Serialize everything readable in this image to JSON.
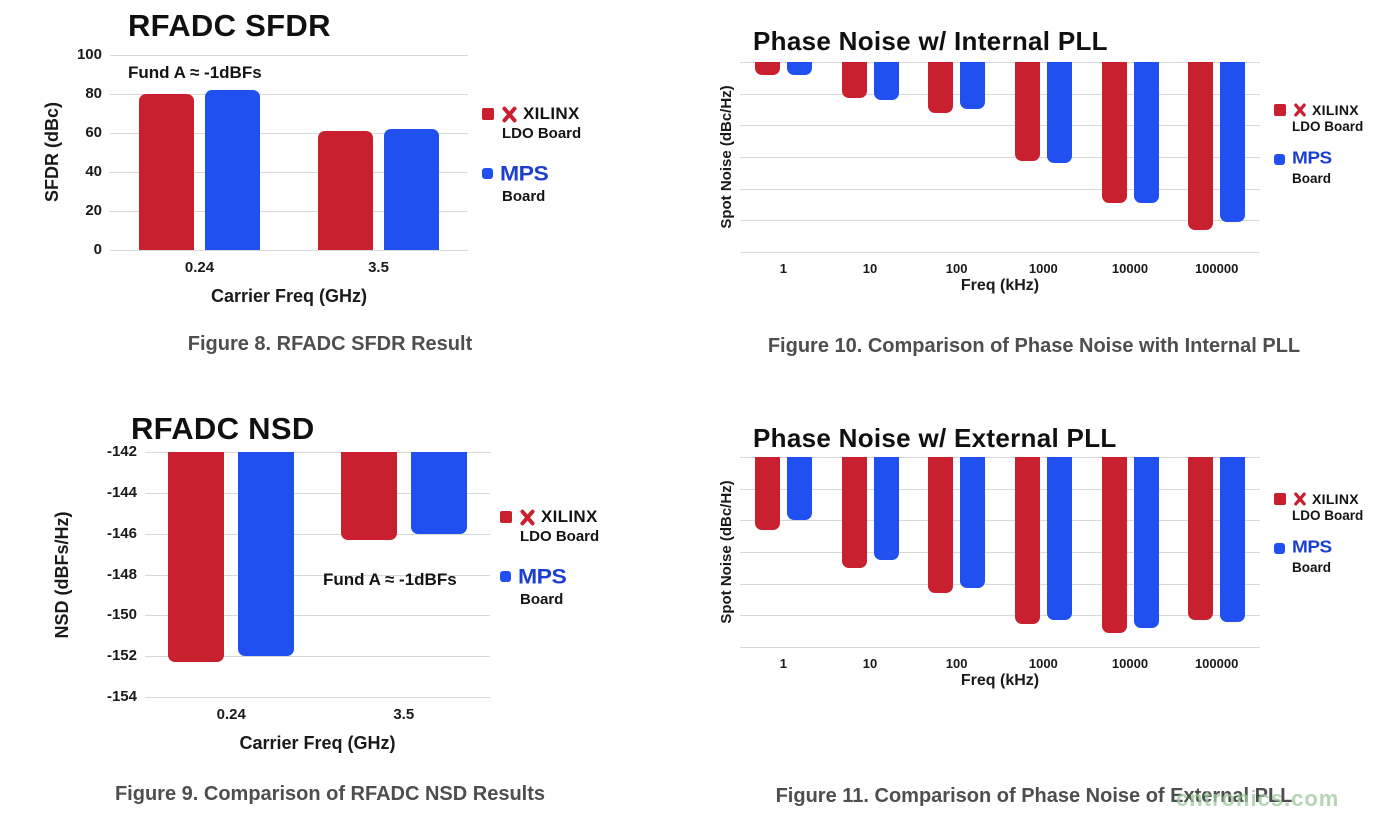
{
  "page": {
    "background": "#ffffff"
  },
  "colors": {
    "red": "#c8202e",
    "blue": "#2150f0",
    "grid": "#d9d9d9",
    "title": "#101010",
    "caption": "#4e4e4e",
    "watermark_green": "#9bc99b"
  },
  "legend": {
    "xilinx_name": "XILINX",
    "xilinx_sub": "LDO Board",
    "mps_name": "MPS",
    "mps_sub": "Board",
    "icons": [
      "xilinx-logo-icon",
      "mps-logo"
    ]
  },
  "watermark": {
    "text": "cntronics.com"
  },
  "chart_data": [
    {
      "id": "sfdr",
      "type": "bar",
      "title": "RFADC SFDR",
      "annotation": "Fund A ≈ -1dBFs",
      "xlabel": "Carrier Freq (GHz)",
      "ylabel": "SFDR (dBc)",
      "categories": [
        "0.24",
        "3.5"
      ],
      "yticks": [
        100,
        80,
        60,
        40,
        20,
        0
      ],
      "y_top": 100,
      "y_bottom": 0,
      "direction": "up",
      "grid": true,
      "legend_position": "right",
      "series": [
        {
          "name": "XILINX LDO Board",
          "color_key": "red",
          "values": [
            80,
            61
          ]
        },
        {
          "name": "MPS Board",
          "color_key": "blue",
          "values": [
            82,
            62
          ]
        }
      ],
      "caption": "Figure 8.  RFADC SFDR Result"
    },
    {
      "id": "phase-noise-internal",
      "type": "bar",
      "title": "Phase Noise w/ Internal PLL",
      "xlabel": "Freq (kHz)",
      "ylabel": "Spot Noise (dBc/Hz)",
      "categories": [
        "1",
        "10",
        "100",
        "1000",
        "10000",
        "100000"
      ],
      "y_axis_tick_labels": "none shown in source",
      "value_unit": "grid_intervals_from_top",
      "grid_intervals": 6,
      "direction": "down",
      "grid": true,
      "legend_position": "right",
      "series": [
        {
          "name": "XILINX LDO Board",
          "color_key": "red",
          "values": [
            0.42,
            1.15,
            1.62,
            3.13,
            4.45,
            5.3
          ]
        },
        {
          "name": "MPS Board",
          "color_key": "blue",
          "values": [
            0.4,
            1.19,
            1.48,
            3.19,
            4.45,
            5.05
          ]
        }
      ],
      "caption": "Figure 10. Comparison of Phase Noise with Internal PLL"
    },
    {
      "id": "nsd",
      "type": "bar",
      "title": "RFADC NSD",
      "annotation": "Fund A ≈ -1dBFs",
      "xlabel": "Carrier Freq (GHz)",
      "ylabel": "NSD (dBFs/Hz)",
      "categories": [
        "0.24",
        "3.5"
      ],
      "yticks": [
        -142,
        -144,
        -146,
        -148,
        -150,
        -152,
        -154
      ],
      "y_top": -142,
      "y_bottom": -154,
      "direction": "down",
      "grid": true,
      "legend_position": "right",
      "series": [
        {
          "name": "XILINX LDO Board",
          "color_key": "red",
          "values": [
            -152.3,
            -146.3
          ]
        },
        {
          "name": "MPS Board",
          "color_key": "blue",
          "values": [
            -152.0,
            -146.0
          ]
        }
      ],
      "caption": "Figure 9. Comparison of RFADC NSD Results"
    },
    {
      "id": "phase-noise-external",
      "type": "bar",
      "title": "Phase Noise w/ External PLL",
      "xlabel": "Freq (kHz)",
      "ylabel": "Spot Noise (dBc/Hz)",
      "categories": [
        "1",
        "10",
        "100",
        "1000",
        "10000",
        "100000"
      ],
      "y_axis_tick_labels": "none shown in source",
      "value_unit": "grid_intervals_from_top",
      "grid_intervals": 6,
      "direction": "down",
      "grid": true,
      "legend_position": "right",
      "series": [
        {
          "name": "XILINX LDO Board",
          "color_key": "red",
          "values": [
            2.3,
            3.52,
            4.3,
            5.26,
            5.55,
            5.14
          ]
        },
        {
          "name": "MPS Board",
          "color_key": "blue",
          "values": [
            2.0,
            3.26,
            4.15,
            5.14,
            5.4,
            5.22
          ]
        }
      ],
      "caption": "Figure 11. Comparison of Phase Noise of External PLL"
    }
  ]
}
